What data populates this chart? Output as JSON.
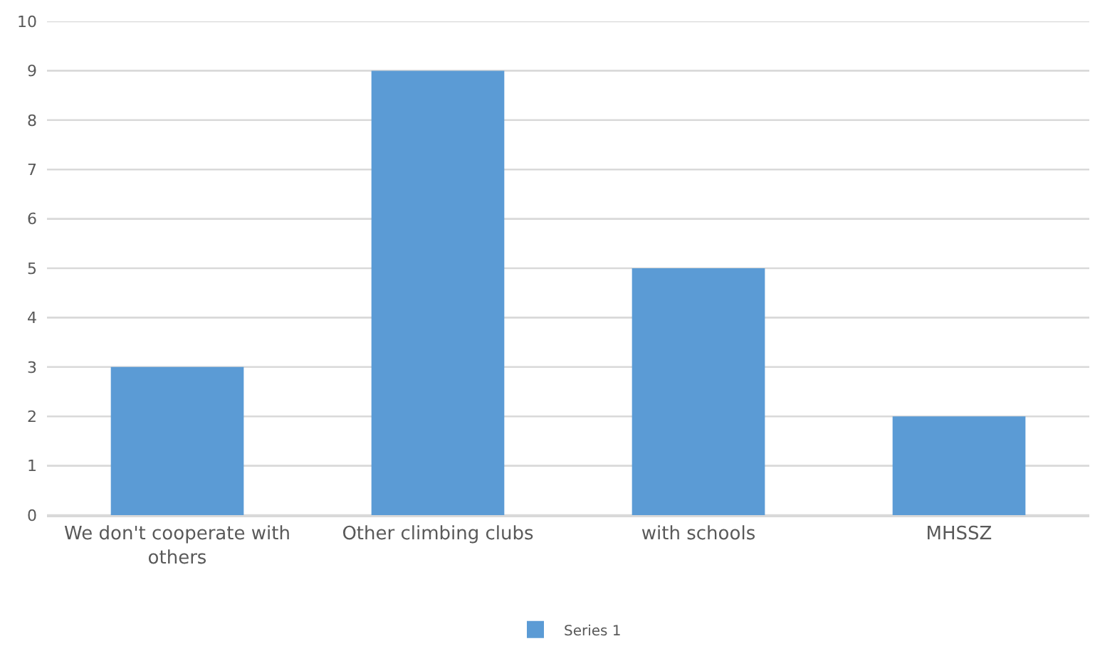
{
  "chart_data": {
    "type": "bar",
    "categories": [
      "We don't cooperate with others",
      "Other climbing clubs",
      "with schools",
      "MHSSZ"
    ],
    "series": [
      {
        "name": "Series 1",
        "color": "#5b9bd5",
        "values": [
          3,
          9,
          5,
          2
        ]
      }
    ],
    "ylim": [
      0,
      10
    ],
    "yticks": [
      0,
      1,
      2,
      3,
      4,
      5,
      6,
      7,
      8,
      9,
      10
    ],
    "grid": "y",
    "legend": "bottom"
  }
}
